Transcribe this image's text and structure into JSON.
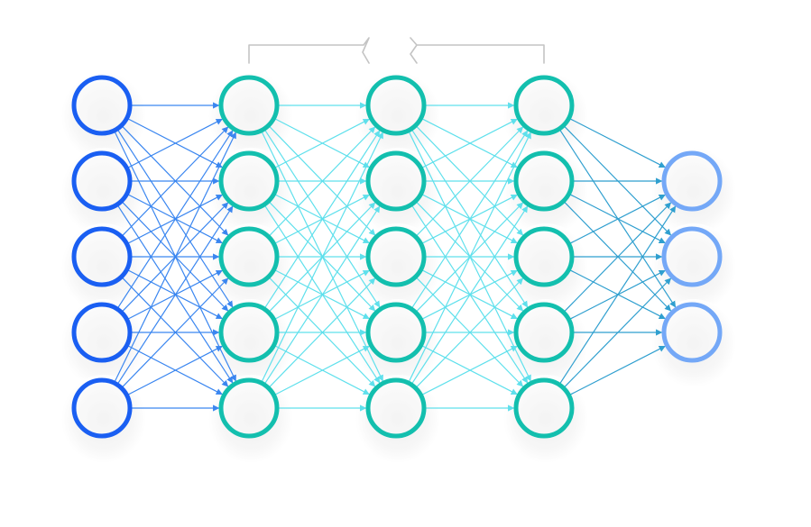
{
  "diagram": {
    "type": "feed-forward-neural-network",
    "layers": [
      {
        "role": "input",
        "nodes": 5,
        "color": "#1a5ff2"
      },
      {
        "role": "hidden",
        "nodes": 5,
        "color": "#13bfae"
      },
      {
        "role": "hidden",
        "nodes": 5,
        "color": "#13bfae"
      },
      {
        "role": "hidden",
        "nodes": 5,
        "color": "#13bfae"
      },
      {
        "role": "output",
        "nodes": 3,
        "color": "#74a8f7"
      }
    ],
    "connectivity": "fully-connected",
    "hidden_layers_bracket": "omitted-layers-break",
    "edge_colors": {
      "input_to_hidden": "#3a86f0",
      "hidden_to_hidden": "#5fe0ec",
      "hidden_to_output": "#2f9fcf"
    },
    "bracket_color": "#c4c4c4",
    "node_fill": "#ffffff"
  }
}
